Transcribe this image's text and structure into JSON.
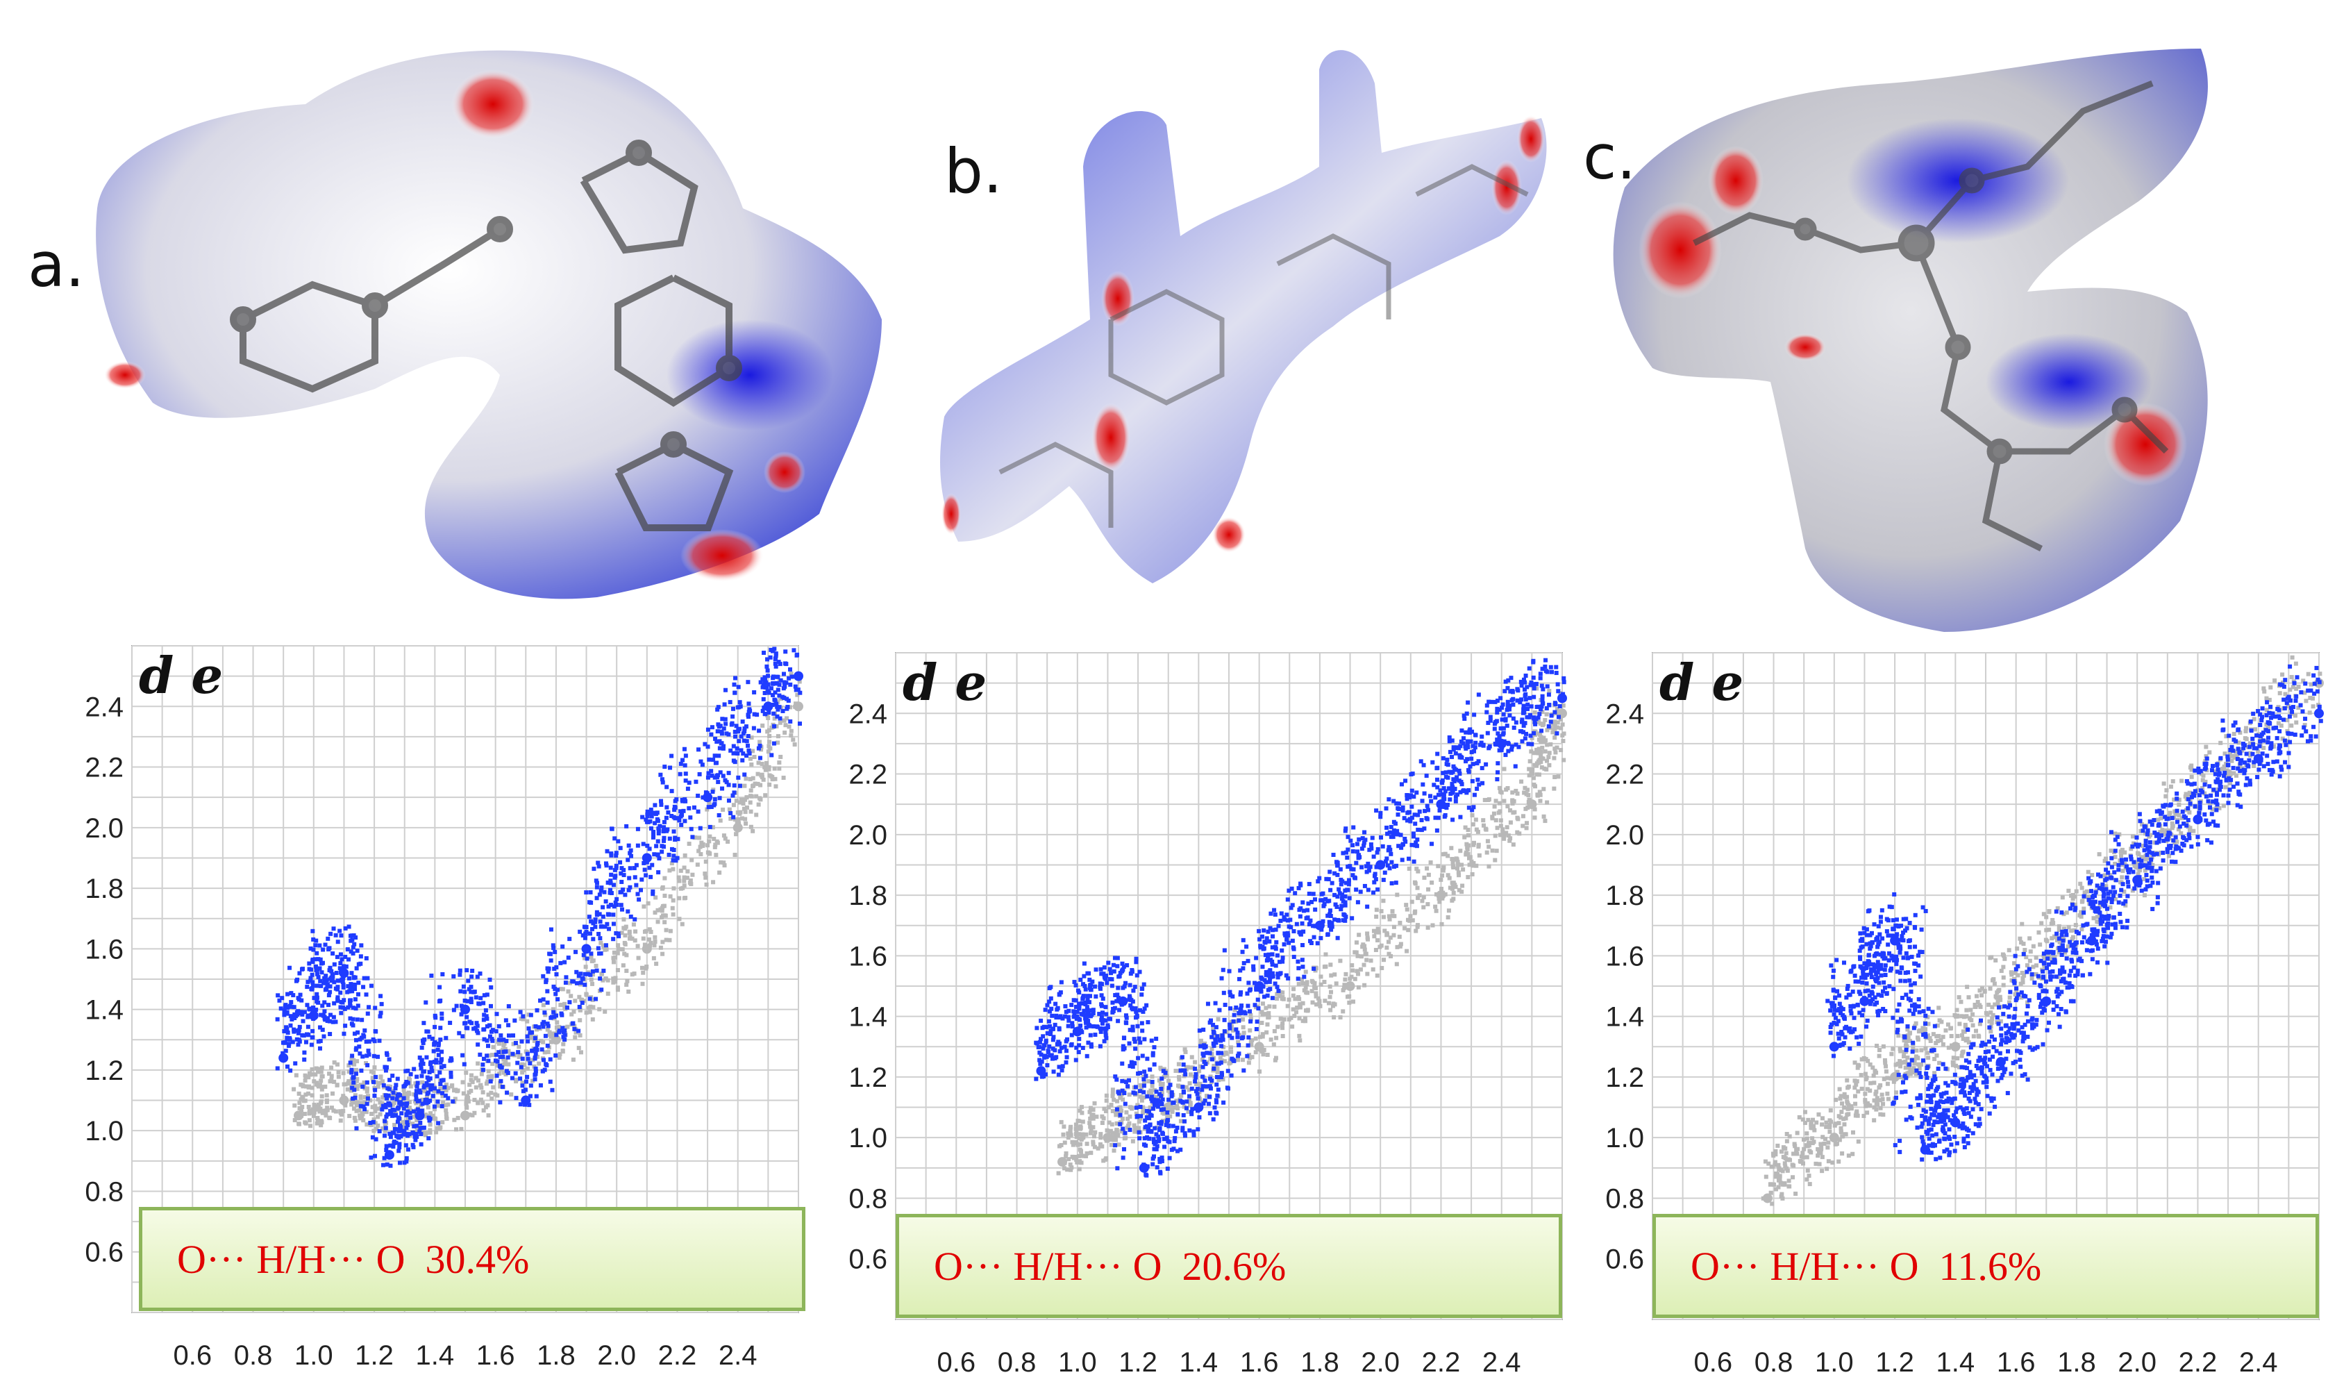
{
  "panels": [
    {
      "letter": "a.",
      "color_legend": {
        "close_contact": "#e00000",
        "mid": "#ffffff",
        "far": "#2030e0"
      }
    },
    {
      "letter": "b."
    },
    {
      "letter": "c."
    }
  ],
  "chart_data": [
    {
      "type": "scatter",
      "title": "",
      "corner_text": "d e",
      "xlabel": "",
      "ylabel": "",
      "xticks": [
        "0.6",
        "0.8",
        "1.0",
        "1.2",
        "1.4",
        "1.6",
        "1.8",
        "2.0",
        "2.2",
        "2.4"
      ],
      "yticks": [
        "0.6",
        "0.8",
        "1.0",
        "1.2",
        "1.4",
        "1.6",
        "1.8",
        "2.0",
        "2.2",
        "2.4"
      ],
      "xlim": [
        0.4,
        2.6
      ],
      "ylim": [
        0.4,
        2.6
      ],
      "grid": true,
      "annotation": "O··· H/H··· O  30.4%",
      "colors": {
        "highlight": "#1f3cff",
        "background": "#b8b8b8"
      },
      "series": [
        {
          "name": "",
          "kind": "background",
          "x": [
            0.95,
            1.1,
            1.3,
            1.5,
            1.8,
            2.1,
            2.4,
            2.6
          ],
          "y": [
            1.05,
            1.1,
            1.02,
            1.05,
            1.3,
            1.6,
            2.0,
            2.4
          ]
        },
        {
          "name": "",
          "kind": "highlight",
          "x": [
            0.9,
            1.0,
            1.1,
            1.25,
            1.35,
            1.5,
            1.7,
            1.9,
            2.1,
            2.3,
            2.5,
            2.6
          ],
          "y": [
            1.24,
            1.38,
            1.52,
            0.92,
            1.05,
            1.4,
            1.1,
            1.6,
            1.9,
            2.1,
            2.4,
            2.5
          ]
        }
      ]
    },
    {
      "type": "scatter",
      "title": "",
      "corner_text": "d e",
      "xlabel": "",
      "ylabel": "",
      "xticks": [
        "0.6",
        "0.8",
        "1.0",
        "1.2",
        "1.4",
        "1.6",
        "1.8",
        "2.0",
        "2.2",
        "2.4"
      ],
      "yticks": [
        "0.6",
        "0.8",
        "1.0",
        "1.2",
        "1.4",
        "1.6",
        "1.8",
        "2.0",
        "2.2",
        "2.4"
      ],
      "xlim": [
        0.4,
        2.6
      ],
      "ylim": [
        0.4,
        2.6
      ],
      "grid": true,
      "annotation": "O··· H/H··· O  20.6%",
      "colors": {
        "highlight": "#1f3cff",
        "background": "#b8b8b8"
      },
      "series": [
        {
          "name": "",
          "kind": "background",
          "x": [
            0.95,
            1.1,
            1.3,
            1.6,
            1.9,
            2.2,
            2.5,
            2.6
          ],
          "y": [
            0.92,
            1.0,
            1.1,
            1.3,
            1.5,
            1.8,
            2.1,
            2.4
          ]
        },
        {
          "name": "",
          "kind": "highlight",
          "x": [
            0.88,
            1.0,
            1.15,
            1.22,
            1.4,
            1.6,
            1.8,
            2.0,
            2.2,
            2.4,
            2.6
          ],
          "y": [
            1.22,
            1.35,
            1.45,
            0.9,
            1.1,
            1.5,
            1.7,
            1.9,
            2.1,
            2.3,
            2.45
          ]
        }
      ]
    },
    {
      "type": "scatter",
      "title": "",
      "corner_text": "d e",
      "xlabel": "",
      "ylabel": "",
      "xticks": [
        "0.6",
        "0.8",
        "1.0",
        "1.2",
        "1.4",
        "1.6",
        "1.8",
        "2.0",
        "2.2",
        "2.4"
      ],
      "yticks": [
        "0.6",
        "0.8",
        "1.0",
        "1.2",
        "1.4",
        "1.6",
        "1.8",
        "2.0",
        "2.2",
        "2.4"
      ],
      "xlim": [
        0.4,
        2.6
      ],
      "ylim": [
        0.4,
        2.6
      ],
      "grid": true,
      "annotation": "O··· H/H··· O  11.6%",
      "colors": {
        "highlight": "#1f3cff",
        "background": "#b8b8b8"
      },
      "series": [
        {
          "name": "",
          "kind": "background",
          "x": [
            0.78,
            1.0,
            1.2,
            1.4,
            1.7,
            2.0,
            2.3,
            2.6
          ],
          "y": [
            0.8,
            1.0,
            1.2,
            1.3,
            1.6,
            1.9,
            2.2,
            2.5
          ]
        },
        {
          "name": "",
          "kind": "highlight",
          "x": [
            1.0,
            1.1,
            1.2,
            1.3,
            1.4,
            1.55,
            1.7,
            1.85,
            2.0,
            2.2,
            2.4,
            2.6
          ],
          "y": [
            1.3,
            1.45,
            1.65,
            0.96,
            1.05,
            1.25,
            1.45,
            1.65,
            1.85,
            2.05,
            2.25,
            2.4
          ]
        }
      ]
    }
  ]
}
